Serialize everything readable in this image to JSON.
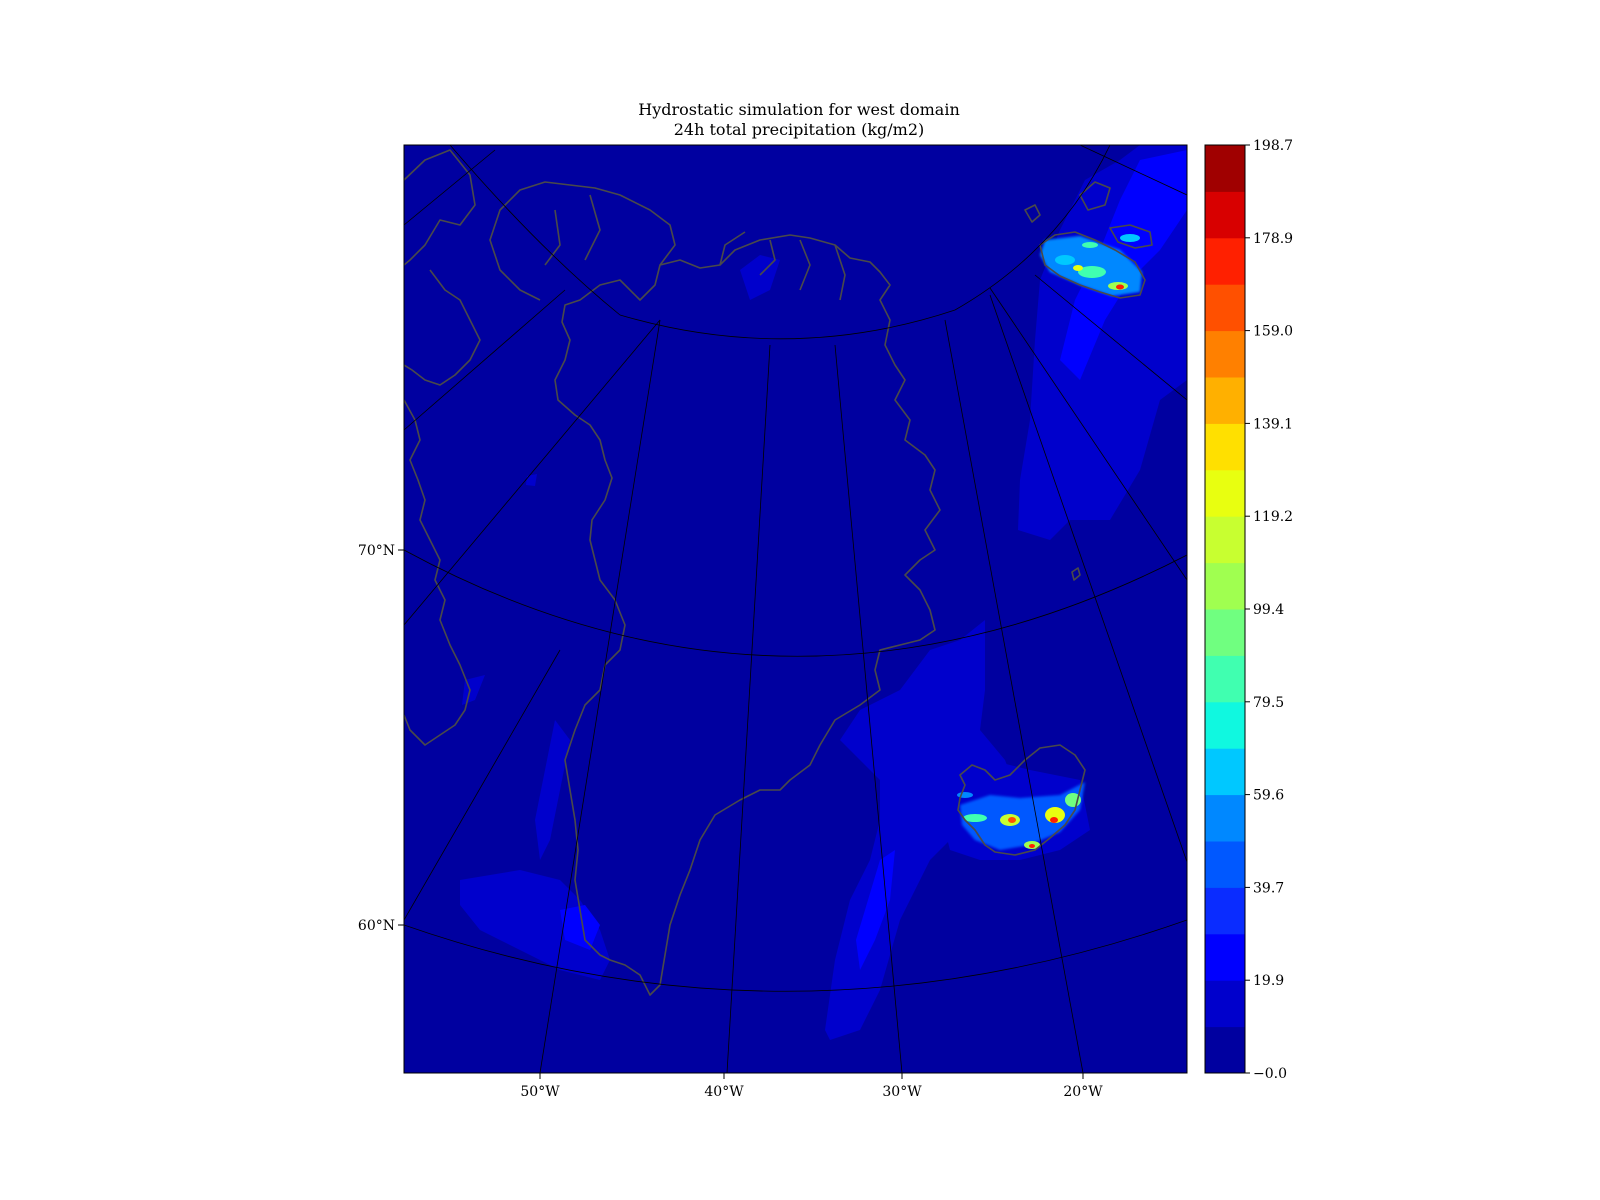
{
  "title": {
    "line1": "Hydrostatic simulation for west domain",
    "line2": "24h total precipitation (kg/m2)"
  },
  "map": {
    "background_color": "#0000a0",
    "coastline_color": "#4a4a4a",
    "graticule_color": "#000000",
    "latitude_labels": [
      "70°N",
      "60°N"
    ],
    "longitude_labels": [
      "50°W",
      "40°W",
      "30°W",
      "20°W"
    ]
  },
  "colorbar": {
    "tick_labels": [
      "198.7",
      "178.9",
      "159.0",
      "139.1",
      "119.2",
      "99.4",
      "79.5",
      "59.6",
      "39.7",
      "19.9",
      "−0.0"
    ],
    "colors": [
      "#0000a0",
      "#0000cc",
      "#0000ff",
      "#0a2cff",
      "#0058ff",
      "#0088ff",
      "#00c8ff",
      "#10f8e0",
      "#40ffb0",
      "#70ff80",
      "#a0ff50",
      "#c8ff30",
      "#e8ff10",
      "#ffe000",
      "#ffb000",
      "#ff8000",
      "#ff5000",
      "#ff2000",
      "#d80000",
      "#a00000"
    ]
  },
  "chart_data": {
    "type": "heatmap",
    "title": "Hydrostatic simulation for west domain\n24h total precipitation (kg/m2)",
    "variable": "24h total precipitation",
    "units": "kg/m2",
    "colorbar_range": [
      -0.0,
      198.7
    ],
    "colorbar_ticks": [
      -0.0,
      19.9,
      39.7,
      59.6,
      79.5,
      99.4,
      119.2,
      139.1,
      159.0,
      178.9,
      198.7
    ],
    "latitude_ticks": [
      "70°N",
      "60°N"
    ],
    "longitude_ticks": [
      "50°W",
      "40°W",
      "30°W",
      "20°W"
    ]
  }
}
